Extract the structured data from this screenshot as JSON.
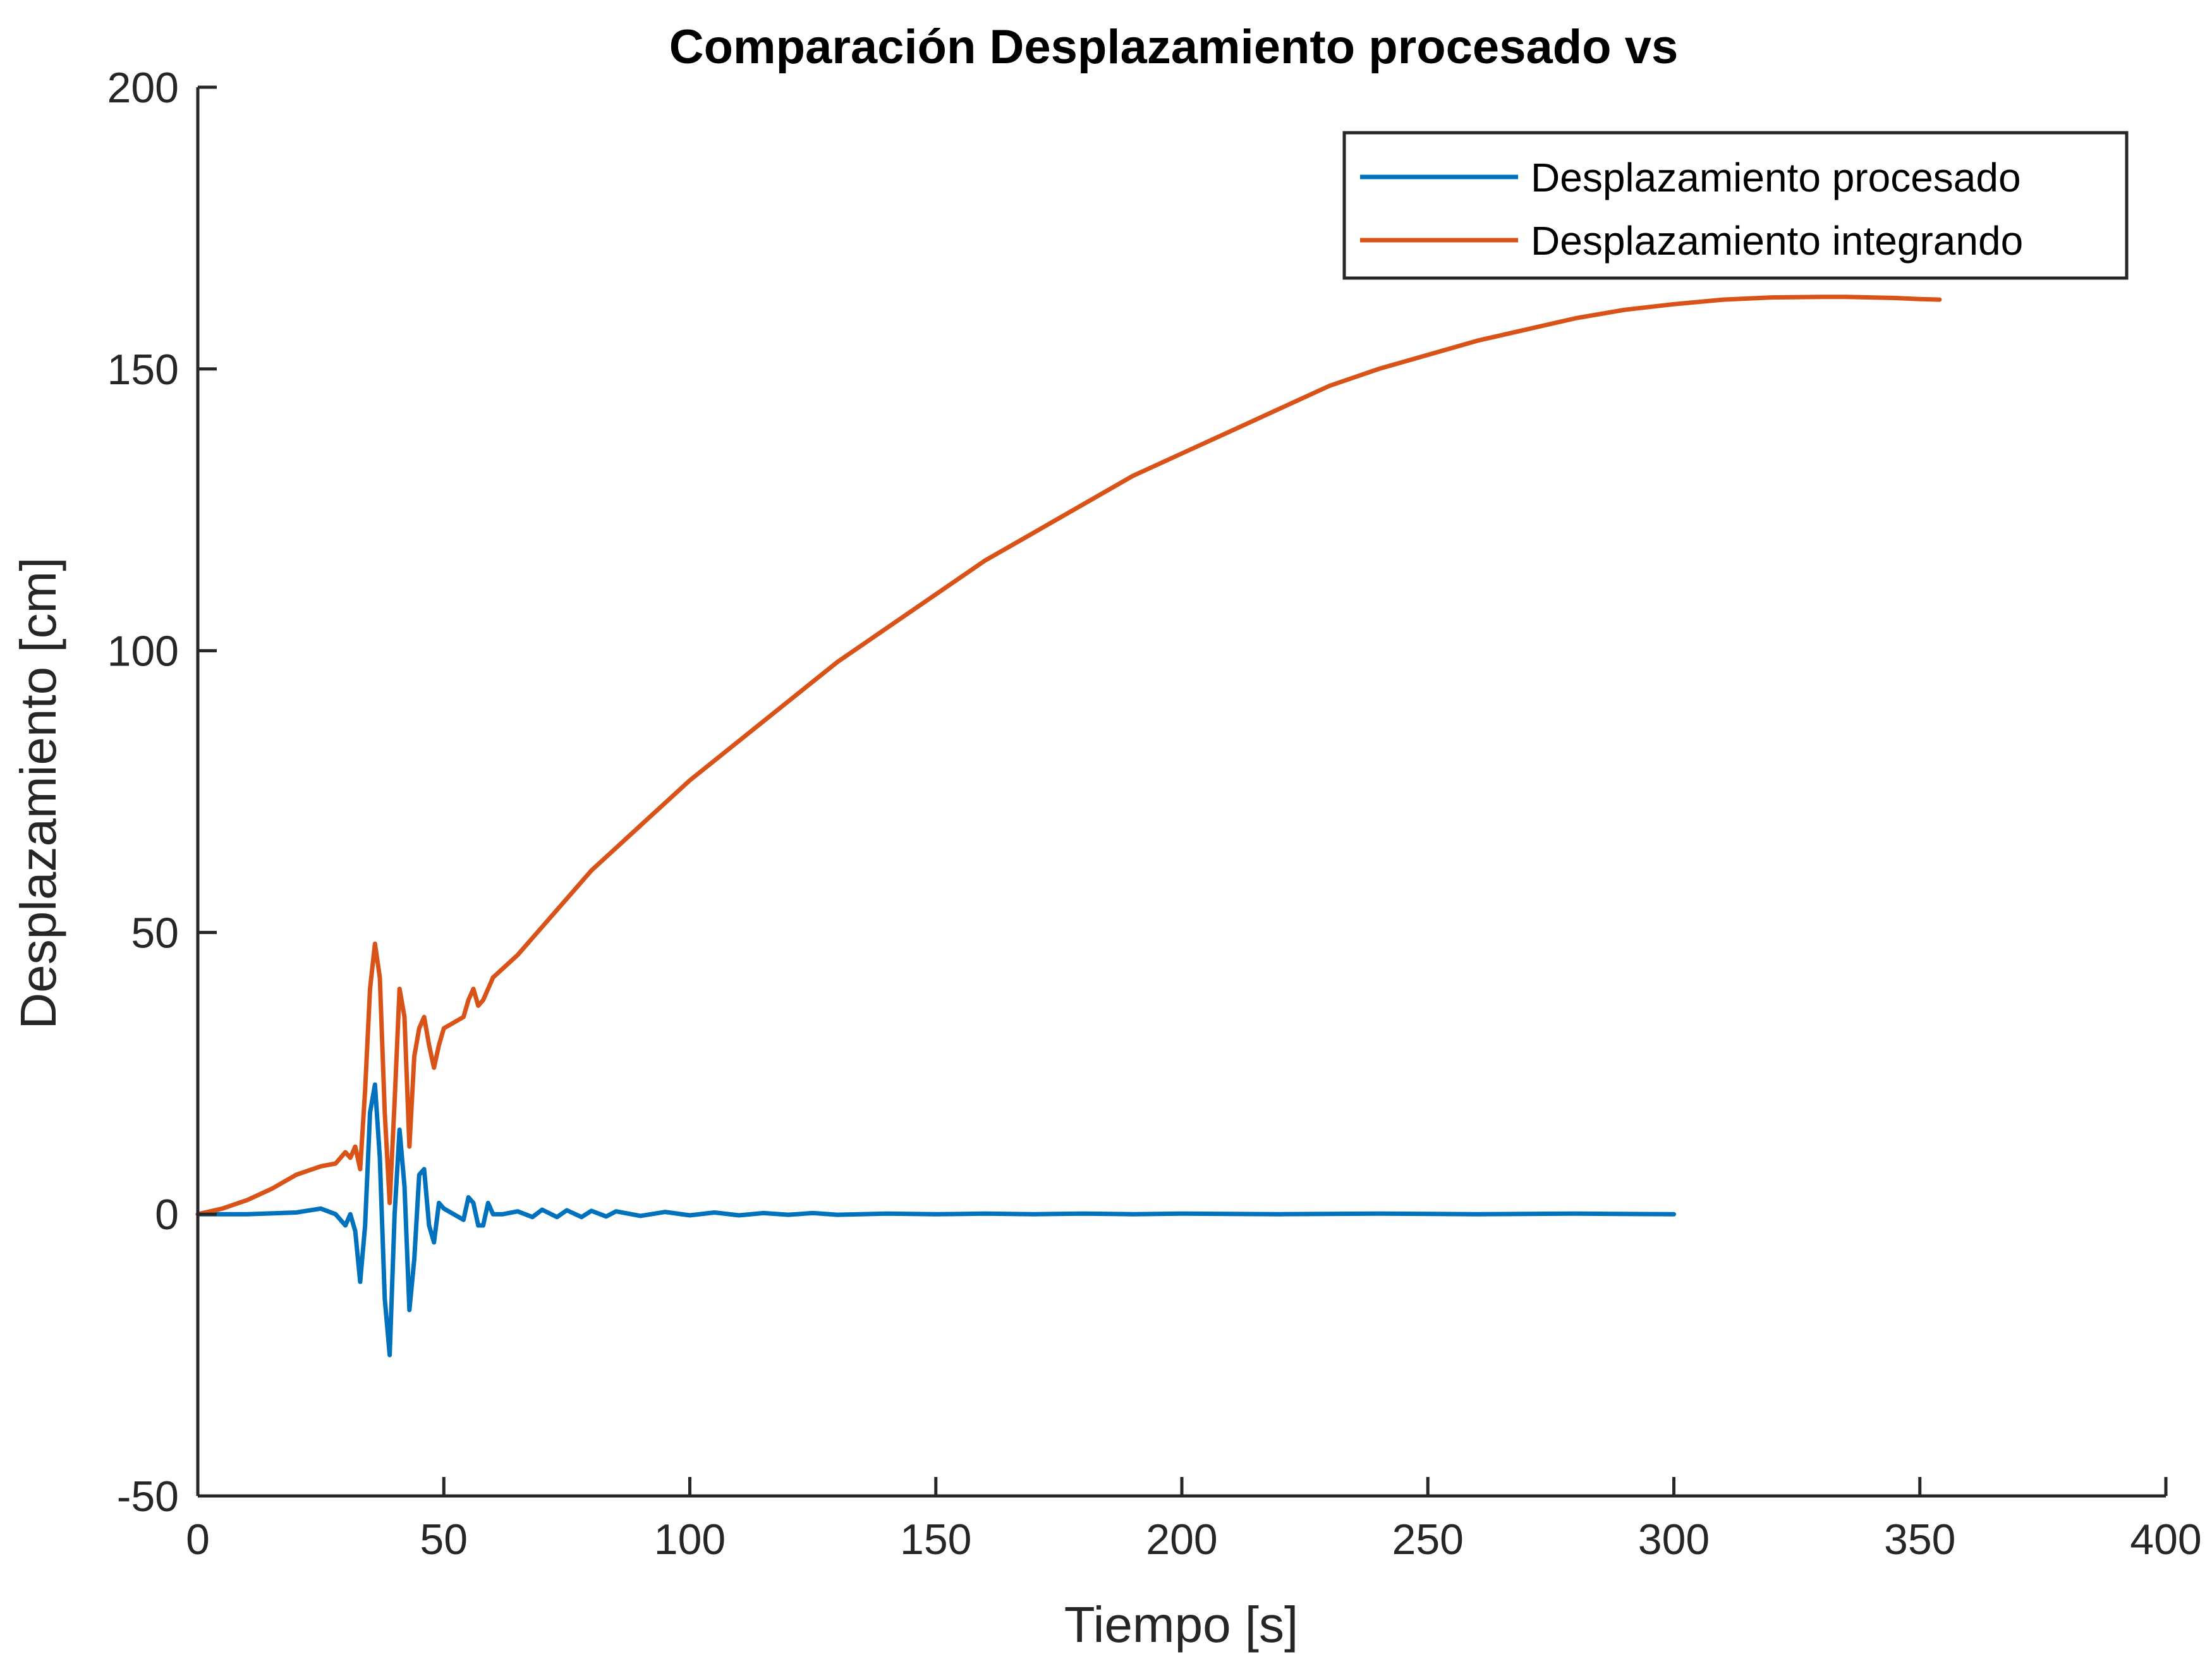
{
  "chart_data": {
    "type": "line",
    "title": "Comparación Desplazamiento procesado vs",
    "xlabel": "Tiempo [s]",
    "ylabel": "Desplazamiento [cm]",
    "xlim": [
      0,
      400
    ],
    "ylim": [
      -50,
      200
    ],
    "xticks": [
      0,
      50,
      100,
      150,
      200,
      250,
      300,
      350,
      400
    ],
    "yticks": [
      -50,
      0,
      50,
      100,
      150,
      200
    ],
    "grid": false,
    "legend_position": "top-right",
    "series": [
      {
        "name": "Desplazamiento procesado",
        "color": "#0072BD",
        "x": [
          0,
          10,
          20,
          25,
          28,
          30,
          31,
          32,
          33,
          34,
          35,
          36,
          37,
          38,
          39,
          40,
          41,
          42,
          43,
          44,
          45,
          46,
          47,
          48,
          49,
          50,
          52,
          54,
          55,
          56,
          57,
          58,
          59,
          60,
          62,
          65,
          68,
          70,
          73,
          75,
          78,
          80,
          83,
          85,
          90,
          95,
          100,
          105,
          110,
          115,
          120,
          125,
          130,
          140,
          150,
          160,
          170,
          180,
          190,
          200,
          220,
          240,
          260,
          280,
          300
        ],
        "y": [
          0,
          0,
          0.3,
          1,
          0,
          -2,
          0,
          -3,
          -12,
          -2,
          18,
          23,
          10,
          -15,
          -25,
          0,
          15,
          5,
          -17,
          -8,
          7,
          8,
          -2,
          -5,
          2,
          1,
          0,
          -1,
          3,
          2,
          -2,
          -2,
          2,
          0,
          0,
          0.5,
          -0.5,
          0.8,
          -0.5,
          0.7,
          -0.5,
          0.6,
          -0.4,
          0.5,
          -0.3,
          0.4,
          -0.2,
          0.3,
          -0.2,
          0.2,
          -0.1,
          0.2,
          -0.1,
          0.1,
          0,
          0.1,
          0,
          0.1,
          0,
          0.1,
          0,
          0.1,
          0,
          0.1,
          0
        ]
      },
      {
        "name": "Desplazamiento integrando",
        "color": "#D95319",
        "x": [
          0,
          5,
          10,
          15,
          20,
          25,
          28,
          30,
          31,
          32,
          33,
          34,
          35,
          36,
          37,
          38,
          39,
          40,
          41,
          42,
          43,
          44,
          45,
          46,
          47,
          48,
          49,
          50,
          52,
          54,
          55,
          56,
          57,
          58,
          59,
          60,
          65,
          70,
          75,
          80,
          85,
          90,
          95,
          100,
          110,
          120,
          130,
          140,
          150,
          160,
          170,
          180,
          190,
          200,
          210,
          220,
          230,
          240,
          250,
          260,
          270,
          280,
          290,
          300,
          310,
          320,
          330,
          335,
          340,
          345,
          350,
          354
        ],
        "y": [
          0,
          1,
          2.5,
          4.5,
          7,
          8.5,
          9,
          11,
          10,
          12,
          8,
          22,
          40,
          48,
          42,
          18,
          2,
          20,
          40,
          35,
          12,
          28,
          33,
          35,
          30,
          26,
          30,
          33,
          34,
          35,
          38,
          40,
          37,
          38,
          40,
          42,
          46,
          51,
          56,
          61,
          65,
          69,
          73,
          77,
          84,
          91,
          98,
          104,
          110,
          116,
          121,
          126,
          131,
          135,
          139,
          143,
          147,
          150,
          152.5,
          155,
          157,
          159,
          160.5,
          161.5,
          162.3,
          162.7,
          162.8,
          162.8,
          162.7,
          162.6,
          162.4,
          162.3
        ]
      }
    ]
  }
}
